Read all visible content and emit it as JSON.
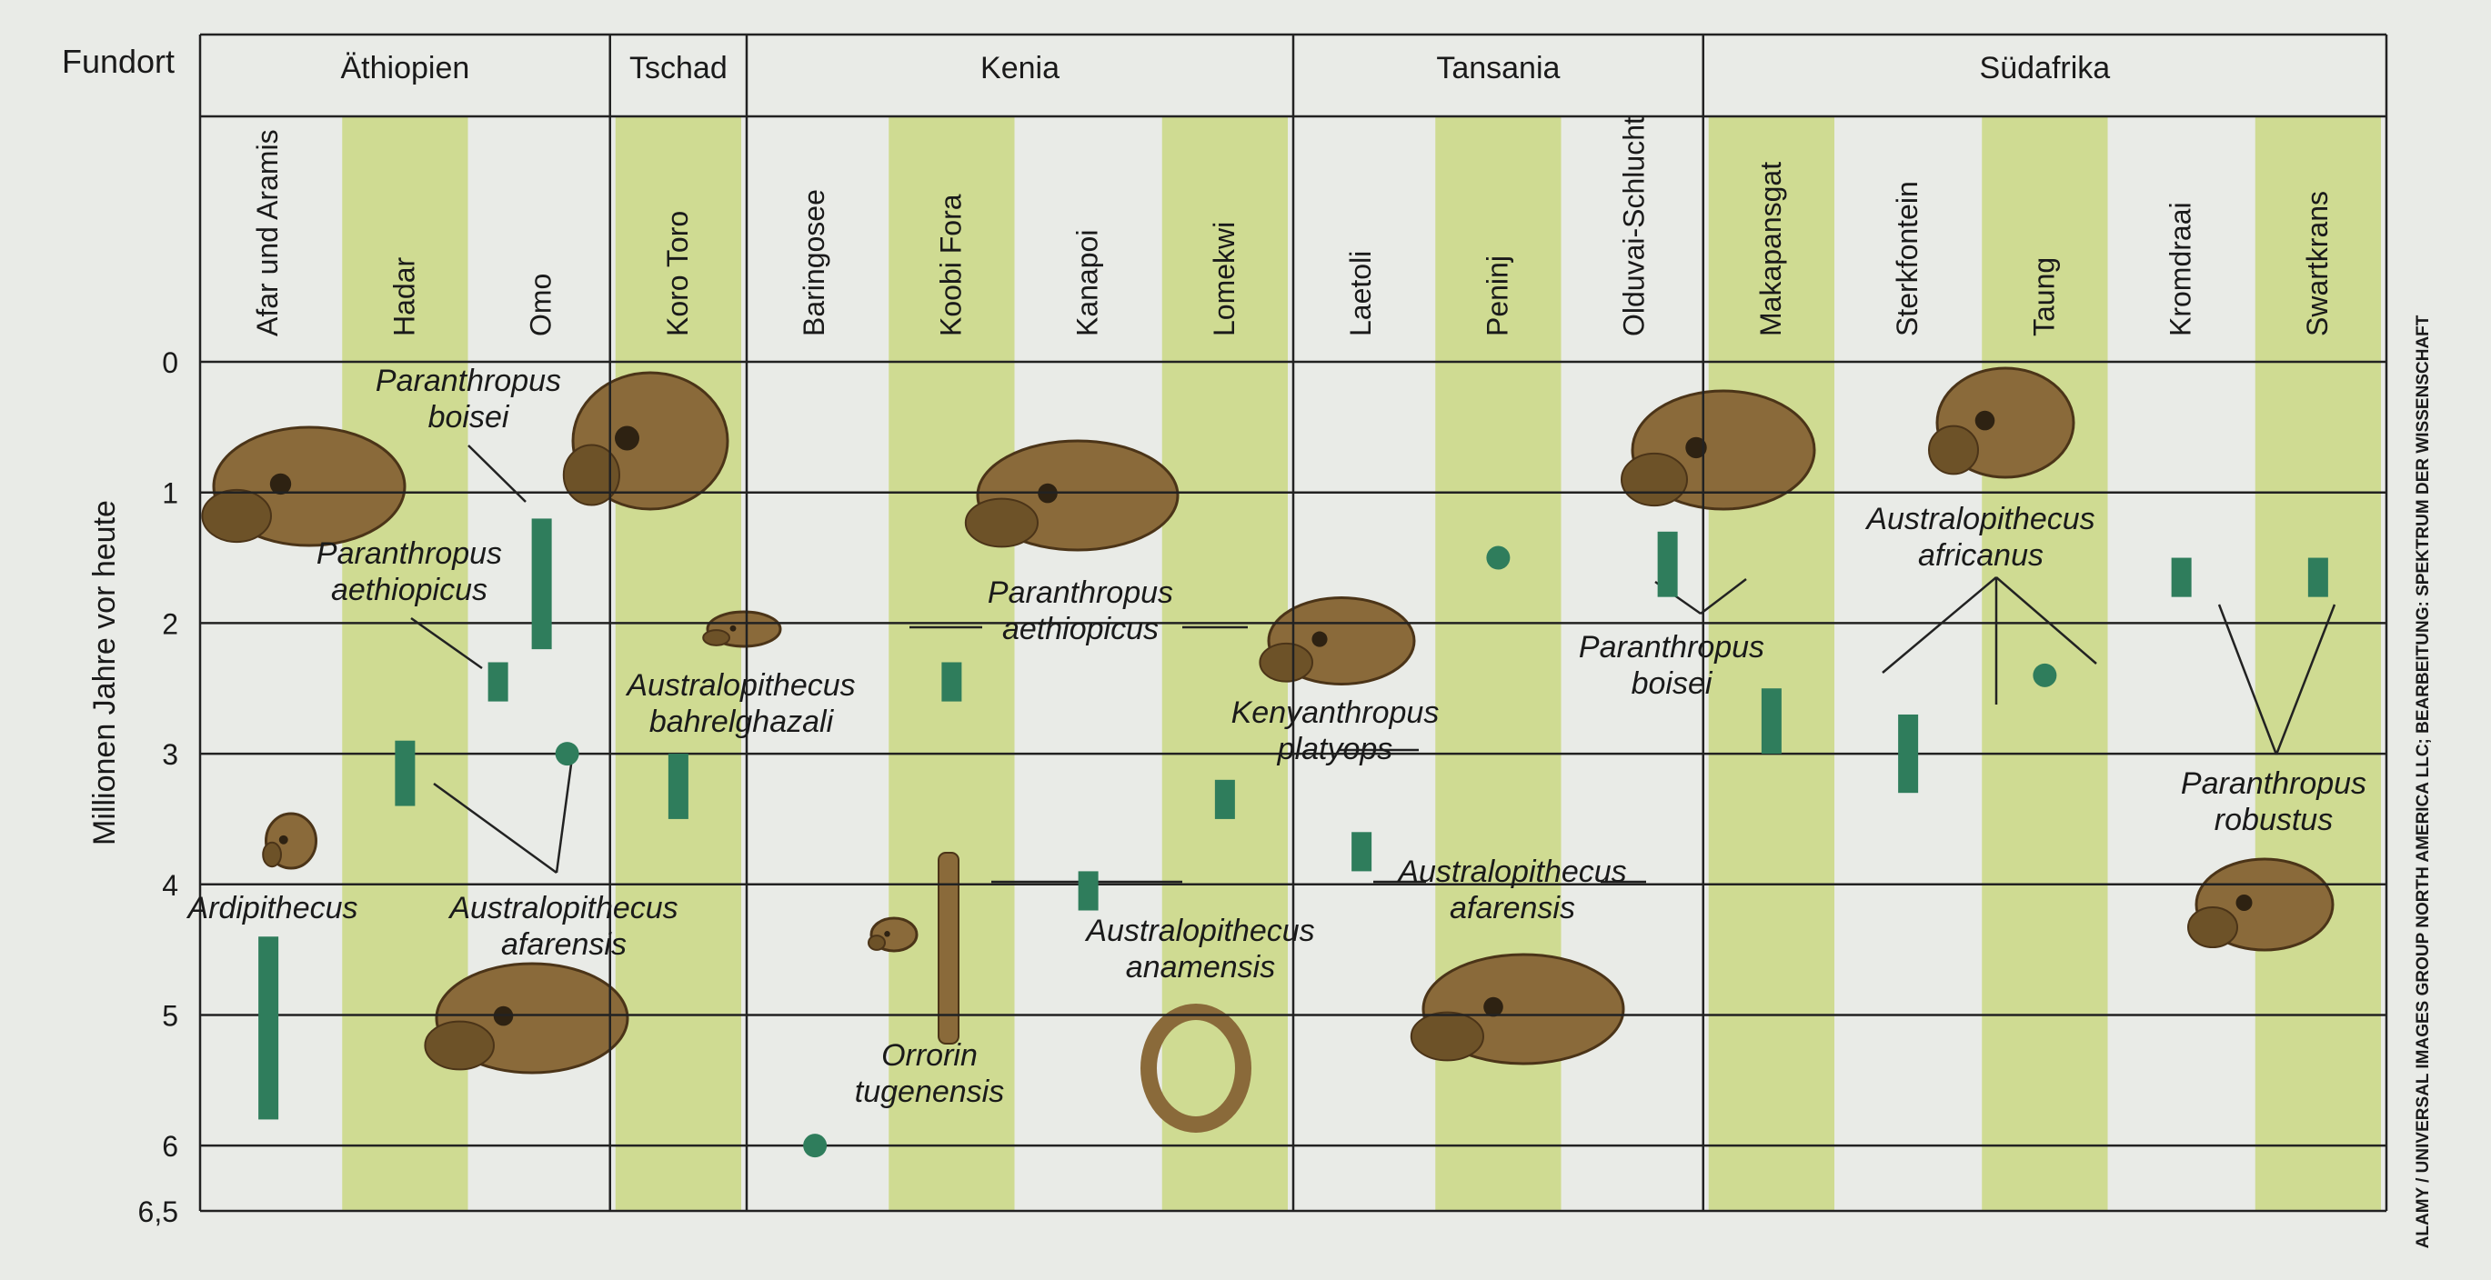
{
  "chart_data": {
    "type": "range",
    "row_header": "Fundort",
    "ylabel": "Millionen Jahre vor heute",
    "ylim": [
      0,
      6.5
    ],
    "yticks": [
      0,
      1,
      2,
      3,
      4,
      5,
      6,
      6.5
    ],
    "ytick_labels": [
      "0",
      "1",
      "2",
      "3",
      "4",
      "5",
      "6",
      "6,5"
    ],
    "countries": [
      {
        "name": "Äthiopien",
        "sites": [
          "Afar und Aramis",
          "Hadar",
          "Omo"
        ]
      },
      {
        "name": "Tschad",
        "sites": [
          "Koro Toro"
        ]
      },
      {
        "name": "Kenia",
        "sites": [
          "Baringosee",
          "Koobi Fora",
          "Kanapoi",
          "Lomekwi"
        ]
      },
      {
        "name": "Tansania",
        "sites": [
          "Laetoli",
          "Peninj",
          "Olduvai-Schlucht"
        ]
      },
      {
        "name": "Südafrika",
        "sites": [
          "Makapansgat",
          "Sterkfontein",
          "Taung",
          "Kromdraai",
          "Swartkrans"
        ]
      }
    ],
    "finds": [
      {
        "site": "Afar und Aramis",
        "range": [
          4.4,
          5.8
        ]
      },
      {
        "site": "Hadar",
        "range": [
          2.9,
          3.4
        ]
      },
      {
        "site": "Omo",
        "range": [
          1.2,
          2.2
        ]
      },
      {
        "site": "Omo",
        "range": [
          2.3,
          2.6
        ]
      },
      {
        "site": "Omo",
        "point": 3.0
      },
      {
        "site": "Koro Toro",
        "range": [
          3.0,
          3.5
        ]
      },
      {
        "site": "Baringosee",
        "point": 6.0
      },
      {
        "site": "Koobi Fora",
        "range": [
          2.3,
          2.6
        ]
      },
      {
        "site": "Kanapoi",
        "range": [
          3.9,
          4.2
        ]
      },
      {
        "site": "Lomekwi",
        "range": [
          3.2,
          3.5
        ]
      },
      {
        "site": "Laetoli",
        "range": [
          3.6,
          3.9
        ]
      },
      {
        "site": "Peninj",
        "point": 1.5
      },
      {
        "site": "Olduvai-Schlucht",
        "range": [
          1.3,
          1.8
        ]
      },
      {
        "site": "Makapansgat",
        "range": [
          2.5,
          3.0
        ]
      },
      {
        "site": "Sterkfontein",
        "range": [
          2.7,
          3.3
        ]
      },
      {
        "site": "Taung",
        "point": 2.4
      },
      {
        "site": "Kromdraai",
        "range": [
          1.5,
          1.8
        ]
      },
      {
        "site": "Swartkrans",
        "range": [
          1.5,
          1.8
        ]
      }
    ],
    "species_labels": [
      "Paranthropus boisei",
      "Paranthropus aethiopicus",
      "Australopithecus bahrelghazali",
      "Paranthropus aethiopicus",
      "Kenyanthropus platyops",
      "Paranthropus boisei",
      "Australopithecus africanus",
      "Paranthropus robustus",
      "Ardipithecus",
      "Australopithecus afarensis",
      "Australopithecus anamensis",
      "Australopithecus afarensis",
      "Orrorin tugenensis"
    ],
    "credit": "ALAMY / UNIVERSAL IMAGES GROUP NORTH AMERICA LLC; BEARBEITUNG: SPEKTRUM DER WISSENSCHAFT",
    "colors": {
      "band": "#cfdb92",
      "bar": "#2f7d5c",
      "background": "#e9ebe7",
      "skull": "#8a6a3a"
    }
  }
}
